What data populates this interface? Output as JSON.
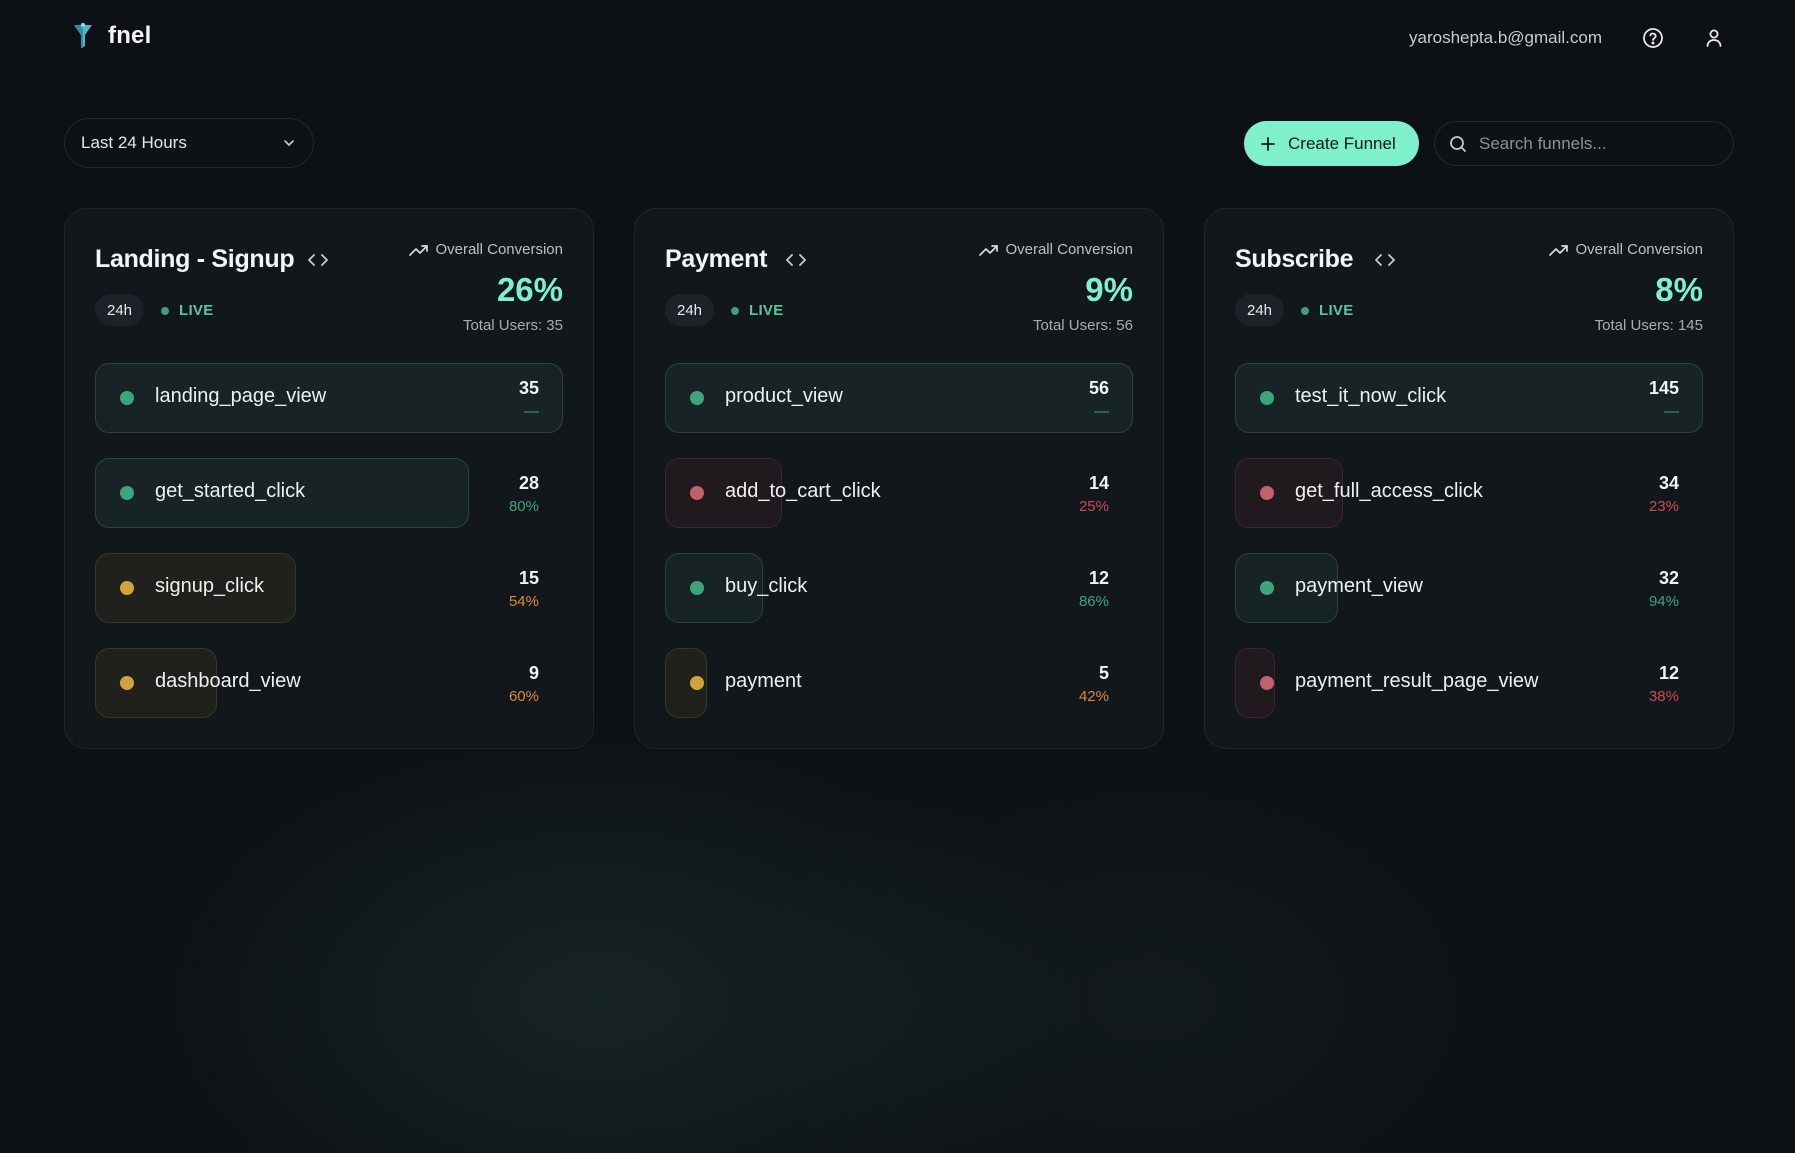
{
  "header": {
    "brand": "fnel",
    "email": "yaroshepta.b@gmail.com",
    "icons": [
      "funnel-logo-icon",
      "help-circle-icon",
      "user-icon"
    ]
  },
  "toolbar": {
    "time_range": "Last 24 Hours",
    "create_label": "Create Funnel",
    "search_placeholder": "Search funnels..."
  },
  "colors": {
    "accent": "#7ff0cc",
    "good": "#3da57b",
    "bad": "#c4606c",
    "warn": "#d0a43a"
  },
  "funnels": [
    {
      "title": "Landing - Signup",
      "period": "24h",
      "status": "LIVE",
      "oc_label": "Overall Conversion",
      "conversion": "26%",
      "total_users": "Total Users: 35",
      "steps": [
        {
          "name": "landing_page_view",
          "count": "35",
          "pct": "—",
          "status": "green",
          "fill": 1.0
        },
        {
          "name": "get_started_click",
          "count": "28",
          "pct": "80%",
          "status": "green",
          "fill": 0.8
        },
        {
          "name": "signup_click",
          "count": "15",
          "pct": "54%",
          "status": "yellow",
          "fill": 0.43
        },
        {
          "name": "dashboard_view",
          "count": "9",
          "pct": "60%",
          "status": "yellow",
          "fill": 0.26
        }
      ]
    },
    {
      "title": "Payment",
      "period": "24h",
      "status": "LIVE",
      "oc_label": "Overall Conversion",
      "conversion": "9%",
      "total_users": "Total Users: 56",
      "steps": [
        {
          "name": "product_view",
          "count": "56",
          "pct": "—",
          "status": "green",
          "fill": 1.0
        },
        {
          "name": "add_to_cart_click",
          "count": "14",
          "pct": "25%",
          "status": "red",
          "fill": 0.25
        },
        {
          "name": "buy_click",
          "count": "12",
          "pct": "86%",
          "status": "green",
          "fill": 0.21
        },
        {
          "name": "payment",
          "count": "5",
          "pct": "42%",
          "status": "yellow",
          "fill": 0.09
        }
      ]
    },
    {
      "title": "Subscribe",
      "period": "24h",
      "status": "LIVE",
      "oc_label": "Overall Conversion",
      "conversion": "8%",
      "total_users": "Total Users: 145",
      "steps": [
        {
          "name": "test_it_now_click",
          "count": "145",
          "pct": "—",
          "status": "green",
          "fill": 1.0
        },
        {
          "name": "get_full_access_click",
          "count": "34",
          "pct": "23%",
          "status": "red",
          "fill": 0.23
        },
        {
          "name": "payment_view",
          "count": "32",
          "pct": "94%",
          "status": "green",
          "fill": 0.22
        },
        {
          "name": "payment_result_page_view",
          "count": "12",
          "pct": "38%",
          "status": "red",
          "fill": 0.08
        }
      ]
    }
  ]
}
